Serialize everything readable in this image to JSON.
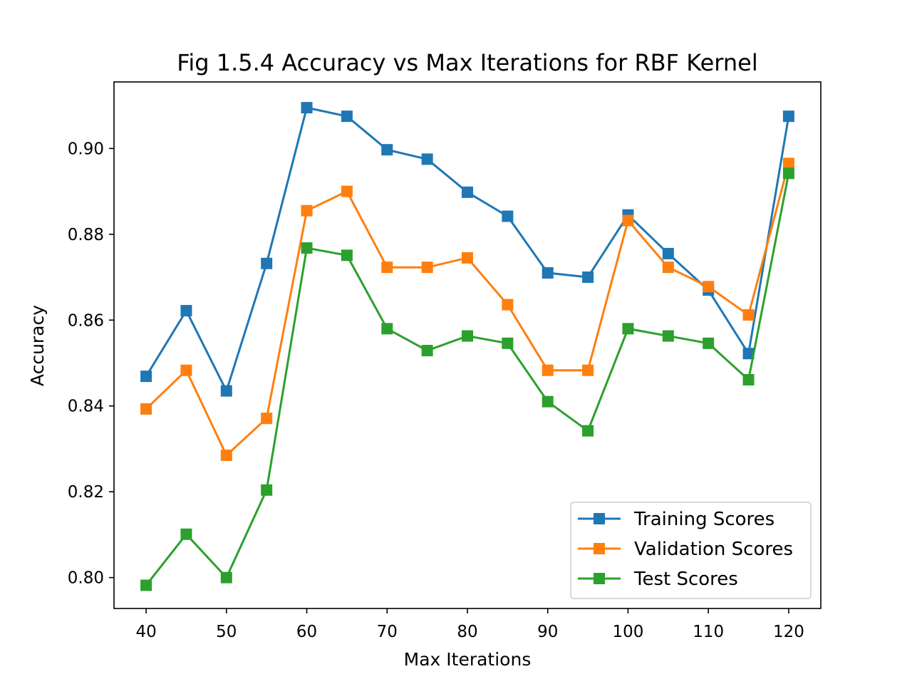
{
  "chart_data": {
    "type": "line",
    "title": "Fig 1.5.4 Accuracy vs Max Iterations for RBF Kernel",
    "xlabel": "Max Iterations",
    "ylabel": "Accuracy",
    "xlim": [
      36,
      124
    ],
    "ylim": [
      0.7928,
      0.9155
    ],
    "xticks": [
      40,
      50,
      60,
      70,
      80,
      90,
      100,
      110,
      120
    ],
    "yticks": [
      0.8,
      0.82,
      0.84,
      0.86,
      0.88,
      0.9
    ],
    "x": [
      40,
      45,
      50,
      55,
      60,
      65,
      70,
      75,
      80,
      85,
      90,
      95,
      100,
      105,
      110,
      115,
      120
    ],
    "series": [
      {
        "name": "Training Scores",
        "color": "#1f77b4",
        "values": [
          0.8469,
          0.8622,
          0.8435,
          0.8732,
          0.9095,
          0.9075,
          0.8997,
          0.8975,
          0.8898,
          0.8842,
          0.871,
          0.87,
          0.8845,
          0.8755,
          0.867,
          0.8522,
          0.9075
        ]
      },
      {
        "name": "Validation Scores",
        "color": "#ff7f0e",
        "values": [
          0.8393,
          0.8483,
          0.8285,
          0.8371,
          0.8855,
          0.89,
          0.8723,
          0.8723,
          0.8745,
          0.8636,
          0.8483,
          0.8483,
          0.8832,
          0.8723,
          0.8678,
          0.8612,
          0.8965
        ]
      },
      {
        "name": "Test Scores",
        "color": "#2ca02c",
        "values": [
          0.7982,
          0.8101,
          0.8,
          0.8204,
          0.8768,
          0.8751,
          0.858,
          0.8529,
          0.8563,
          0.8546,
          0.841,
          0.8342,
          0.858,
          0.8563,
          0.8546,
          0.8461,
          0.8942
        ]
      }
    ],
    "marker": "square",
    "grid": false,
    "legend_position": "lower-right"
  }
}
